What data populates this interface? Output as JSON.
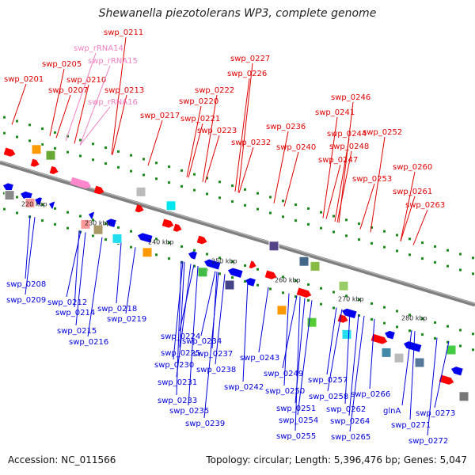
{
  "title": "Shewanella piezotolerans WP3, complete genome",
  "accession": "Accession: NC_011566",
  "summary": "Topology: circular; Length: 5,396,476 bp; Genes: 5,047",
  "colors": {
    "plus_label": "#e00000",
    "minus_label": "#0000dd",
    "rrna_label": "#f080c0",
    "backbone": "#808080",
    "gc_tick": "#1a8a1a",
    "plus_gene": "#ff0000",
    "minus_gene": "#0000ee",
    "rrna_gene": "#ff88cc"
  },
  "ticks": [
    "220 kbp",
    "230 kbp",
    "240 kbp",
    "250 kbp",
    "260 kbp",
    "270 kbp",
    "280 kbp"
  ],
  "plus_labels": [
    {
      "text": "swp_0201",
      "kind": "gene"
    },
    {
      "text": "swp_0205",
      "kind": "gene"
    },
    {
      "text": "swp_0207",
      "kind": "gene"
    },
    {
      "text": "swp_0210",
      "kind": "gene"
    },
    {
      "text": "swp_0211",
      "kind": "gene"
    },
    {
      "text": "swp_rRNA14",
      "kind": "rrna"
    },
    {
      "text": "swp_rRNA15",
      "kind": "rrna"
    },
    {
      "text": "swp_0213",
      "kind": "gene"
    },
    {
      "text": "swp_rRNA16",
      "kind": "rrna"
    },
    {
      "text": "swp_0217",
      "kind": "gene"
    },
    {
      "text": "swp_0220",
      "kind": "gene"
    },
    {
      "text": "swp_0222",
      "kind": "gene"
    },
    {
      "text": "swp_0221",
      "kind": "gene"
    },
    {
      "text": "swp_0227",
      "kind": "gene"
    },
    {
      "text": "swp_0226",
      "kind": "gene"
    },
    {
      "text": "swp_0223",
      "kind": "gene"
    },
    {
      "text": "swp_0232",
      "kind": "gene"
    },
    {
      "text": "swp_0236",
      "kind": "gene"
    },
    {
      "text": "swp_0240",
      "kind": "gene"
    },
    {
      "text": "swp_0241",
      "kind": "gene"
    },
    {
      "text": "swp_0246",
      "kind": "gene"
    },
    {
      "text": "swp_0244",
      "kind": "gene"
    },
    {
      "text": "swp_0248",
      "kind": "gene"
    },
    {
      "text": "swp_0247",
      "kind": "gene"
    },
    {
      "text": "swp_0252",
      "kind": "gene"
    },
    {
      "text": "swp_0253",
      "kind": "gene"
    },
    {
      "text": "swp_0260",
      "kind": "gene"
    },
    {
      "text": "swp_0261",
      "kind": "gene"
    },
    {
      "text": "swp_0263",
      "kind": "gene"
    }
  ],
  "minus_labels": [
    "swp_0208",
    "swp_0209",
    "swp_0212",
    "swp_0214",
    "swp_0215",
    "swp_0216",
    "swp_0218",
    "swp_0219",
    "swp_0224",
    "swp_0225",
    "swp_0230",
    "swp_0231",
    "swp_0233",
    "swp_0235",
    "swp_0234",
    "swp_0237",
    "swp_0238",
    "swp_0239",
    "swp_0242",
    "swp_0243",
    "swp_0249",
    "swp_0250",
    "swp_0251",
    "swp_0254",
    "swp_0255",
    "swp_0257",
    "swp_0258",
    "swp_0262",
    "swp_0264",
    "swp_0265",
    "swp_0266",
    "glnA",
    "swp_0273",
    "swp_0271",
    "swp_0272"
  ]
}
